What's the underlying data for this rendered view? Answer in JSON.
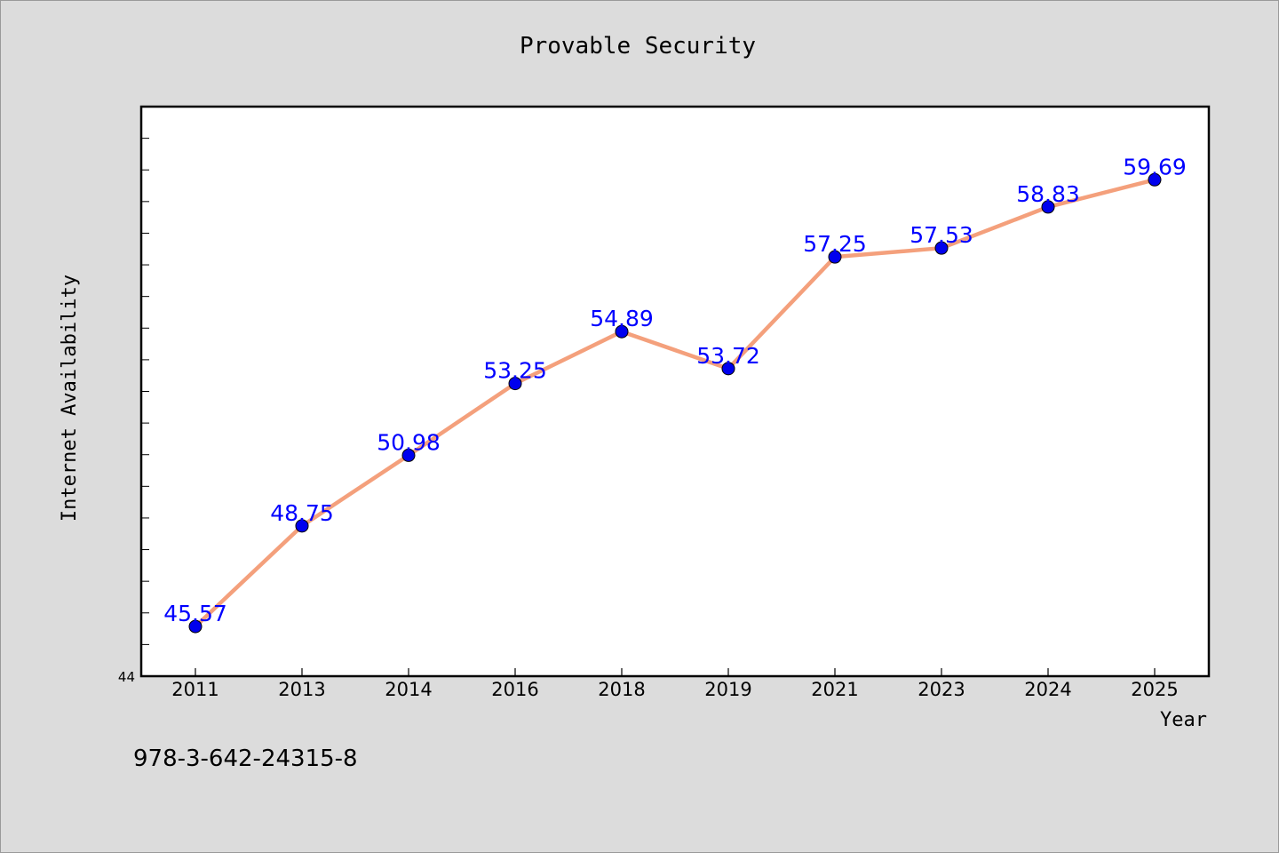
{
  "chart_data": {
    "type": "line",
    "title": "Provable Security",
    "xlabel": "Year",
    "ylabel": "Internet Availability",
    "categories": [
      "2011",
      "2013",
      "2014",
      "2016",
      "2018",
      "2019",
      "2021",
      "2023",
      "2024",
      "2025"
    ],
    "series": [
      {
        "values": [
          45.57,
          48.75,
          50.98,
          53.25,
          54.89,
          53.72,
          57.25,
          57.53,
          58.83,
          59.69
        ]
      }
    ],
    "data_labels": [
      "45.57",
      "48.75",
      "50.98",
      "53.25",
      "54.89",
      "53.72",
      "57.25",
      "57.53",
      "58.83",
      "59.69"
    ],
    "ylim": [
      44,
      62
    ],
    "y_min_label": "44",
    "line_color": "#f4a07c",
    "marker_color": "#0000ee",
    "label_color": "#0000ff",
    "grid": false,
    "legend": "none"
  },
  "footer": {
    "isbn": "978-3-642-24315-8"
  }
}
